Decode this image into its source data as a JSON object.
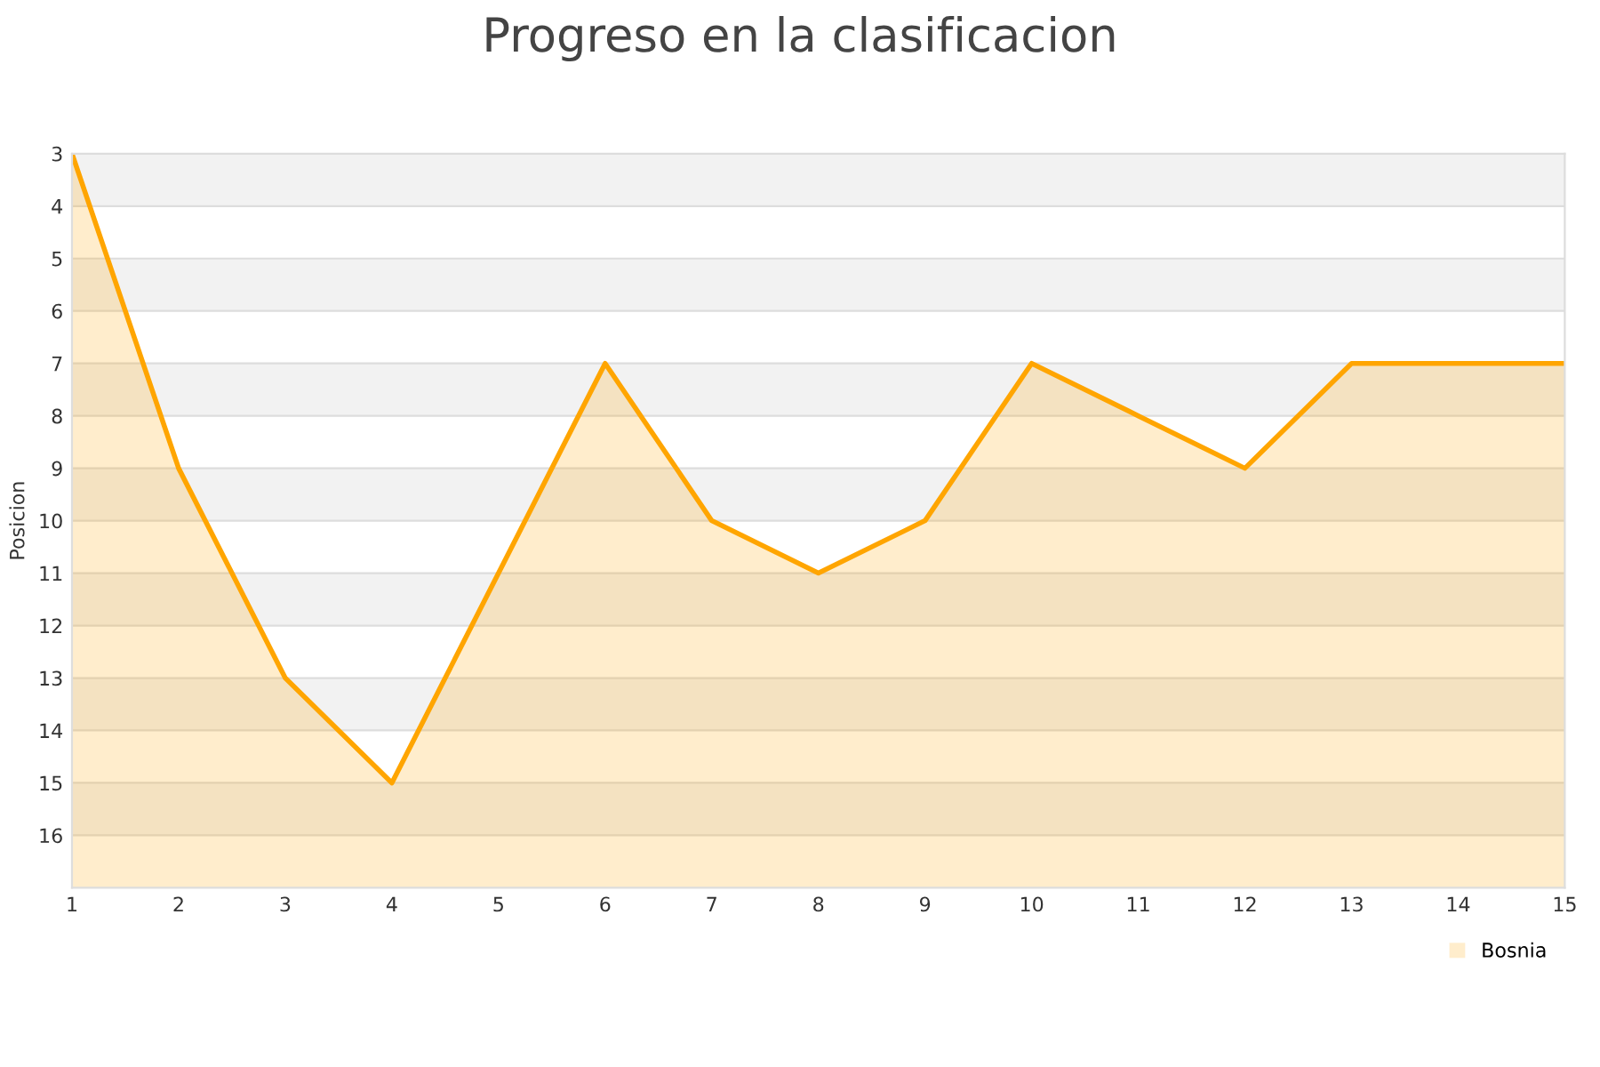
{
  "chart_data": {
    "type": "area",
    "title": "Progreso en la clasificacion",
    "ylabel": "Posicion",
    "x": [
      1,
      2,
      3,
      4,
      5,
      6,
      7,
      8,
      9,
      10,
      11,
      12,
      13,
      14,
      15
    ],
    "series": [
      {
        "name": "Bosnia",
        "color": "#ffa500",
        "values": [
          3,
          9,
          13,
          15,
          11,
          7,
          10,
          11,
          10,
          7,
          8,
          9,
          7,
          7,
          7
        ]
      }
    ],
    "xlim": [
      1,
      15
    ],
    "xticks": [
      1,
      2,
      3,
      4,
      5,
      6,
      7,
      8,
      9,
      10,
      11,
      12,
      13,
      14,
      15
    ],
    "ylim": [
      17,
      3
    ],
    "yticks": [
      3,
      4,
      5,
      6,
      7,
      8,
      9,
      10,
      11,
      12,
      13,
      14,
      15,
      16
    ],
    "grid": "y",
    "legend": "bottom right",
    "marker": "none",
    "line_style": "solid"
  }
}
